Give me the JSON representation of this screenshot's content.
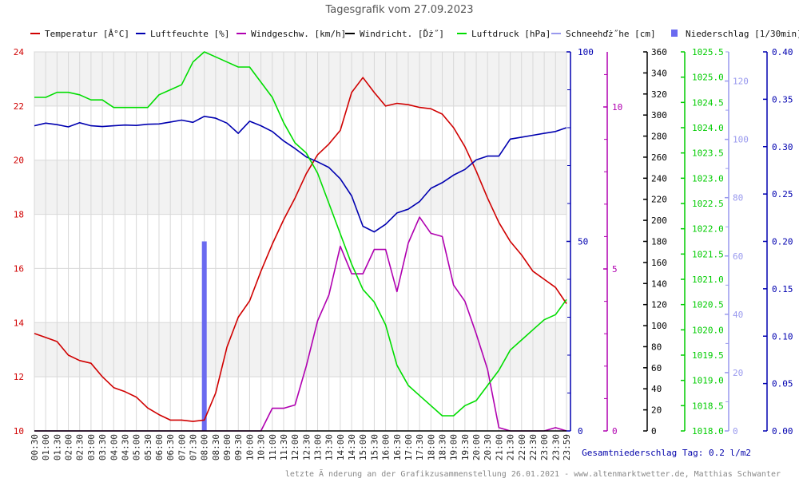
{
  "chart_data": {
    "type": "line",
    "title": "Tagesgrafik vom 27.09.2023",
    "footer_total": "Gesamtniederschlag Tag: 0.2 l/m2",
    "footer_credit": "letzte Ã nderung an der Grafikzusammenstellung 26.01.2021 - www.altenmarktwetter.de, Matthias Schwanter",
    "grid": true,
    "legend_position": "top",
    "x_labels": [
      "00:30",
      "01:00",
      "01:30",
      "02:00",
      "02:30",
      "03:00",
      "03:30",
      "04:00",
      "04:30",
      "05:00",
      "05:30",
      "06:00",
      "06:30",
      "07:00",
      "07:30",
      "08:00",
      "08:30",
      "09:00",
      "09:30",
      "10:00",
      "10:30",
      "11:00",
      "11:30",
      "12:00",
      "12:30",
      "13:00",
      "13:30",
      "14:00",
      "14:30",
      "15:00",
      "15:30",
      "16:00",
      "16:30",
      "17:00",
      "17:30",
      "18:00",
      "18:30",
      "19:00",
      "19:30",
      "20:00",
      "20:30",
      "21:00",
      "21:30",
      "22:00",
      "22:30",
      "23:00",
      "23:30",
      "23:59"
    ],
    "x_hours": [
      0.5,
      1,
      1.5,
      2,
      2.5,
      3,
      3.5,
      4,
      4.5,
      5,
      5.5,
      6,
      6.5,
      7,
      7.5,
      8,
      8.5,
      9,
      9.5,
      10,
      10.5,
      11,
      11.5,
      12,
      12.5,
      13,
      13.5,
      14,
      14.5,
      15,
      15.5,
      16,
      16.5,
      17,
      17.5,
      18,
      18.5,
      19,
      19.5,
      20,
      20.5,
      21,
      21.5,
      22,
      22.5,
      23,
      23.5,
      23.983
    ],
    "axes": [
      {
        "id": "temp",
        "ticks": [
          "10",
          "12",
          "14",
          "16",
          "18",
          "20",
          "22",
          "24"
        ],
        "range": [
          10,
          24
        ],
        "color": "#d00000"
      },
      {
        "id": "hum",
        "ticks": [
          "0",
          "50",
          "100"
        ],
        "range": [
          0,
          100
        ],
        "color": "#0000b0"
      },
      {
        "id": "wind",
        "ticks": [
          "0",
          "5",
          "10"
        ],
        "range": [
          0,
          11.7
        ],
        "color": "#b000b0"
      },
      {
        "id": "dir",
        "ticks": [
          "0",
          "20",
          "40",
          "60",
          "80",
          "100",
          "120",
          "140",
          "160",
          "180",
          "200",
          "220",
          "240",
          "260",
          "280",
          "300",
          "320",
          "340",
          "360"
        ],
        "range": [
          0,
          360
        ],
        "color": "#000000"
      },
      {
        "id": "press",
        "ticks": [
          "1018.0",
          "1018.5",
          "1019.0",
          "1019.5",
          "1020.0",
          "1020.5",
          "1021.0",
          "1021.5",
          "1022.0",
          "1022.5",
          "1023.0",
          "1023.5",
          "1024.0",
          "1024.5",
          "1025.0",
          "1025.5"
        ],
        "range": [
          1018.0,
          1025.5
        ],
        "color": "#00cc00"
      },
      {
        "id": "snow",
        "ticks": [
          "0",
          "20",
          "40",
          "60",
          "80",
          "100",
          "120"
        ],
        "range": [
          0,
          130
        ],
        "color": "#9999ee"
      },
      {
        "id": "rain",
        "ticks": [
          "0.00",
          "0.05",
          "0.10",
          "0.15",
          "0.20",
          "0.25",
          "0.30",
          "0.35",
          "0.40"
        ],
        "range": [
          0,
          0.4
        ],
        "color": "#0000b0"
      }
    ],
    "series": [
      {
        "name": "Temperatur [Â°C]",
        "axis": "temp",
        "color": "#d00000",
        "x": [
          0.5,
          1,
          1.5,
          2,
          2.5,
          3,
          3.5,
          4,
          4.5,
          5,
          5.5,
          6,
          6.5,
          7,
          7.5,
          8,
          8.5,
          9,
          9.5,
          10,
          10.5,
          11,
          11.5,
          12,
          12.5,
          13,
          13.5,
          14,
          14.5,
          15,
          15.5,
          16,
          16.5,
          17,
          17.5,
          18,
          18.5,
          19,
          19.5,
          20,
          20.5,
          21,
          21.5,
          22,
          22.5,
          23,
          23.5,
          23.983
        ],
        "values": [
          13.6,
          13.45,
          13.3,
          12.8,
          12.6,
          12.5,
          12.0,
          11.6,
          11.45,
          11.25,
          10.85,
          10.6,
          10.4,
          10.4,
          10.35,
          10.4,
          11.4,
          13.1,
          14.2,
          14.8,
          15.9,
          16.9,
          17.8,
          18.6,
          19.5,
          20.2,
          20.6,
          21.1,
          22.5,
          23.05,
          22.5,
          22.0,
          22.1,
          22.05,
          21.95,
          21.9,
          21.7,
          21.2,
          20.5,
          19.6,
          18.6,
          17.7,
          17.0,
          16.5,
          15.9,
          15.6,
          15.3,
          14.7
        ]
      },
      {
        "name": "Luftfeuchte [%]",
        "axis": "hum",
        "color": "#0000b0",
        "x": [
          0.5,
          1,
          1.5,
          2,
          2.5,
          3,
          3.5,
          4,
          4.5,
          5,
          5.5,
          6,
          6.5,
          7,
          7.5,
          8,
          8.5,
          9,
          9.5,
          10,
          10.5,
          11,
          11.5,
          12,
          12.5,
          13,
          13.5,
          14,
          14.5,
          15,
          15.5,
          16,
          16.5,
          17,
          17.5,
          18,
          18.5,
          19,
          19.5,
          20,
          20.5,
          21,
          21.5,
          22,
          22.5,
          23,
          23.5,
          23.983
        ],
        "values": [
          80.5,
          81.2,
          80.8,
          80.2,
          81.3,
          80.5,
          80.3,
          80.5,
          80.7,
          80.6,
          80.9,
          81.0,
          81.5,
          82.0,
          81.4,
          83.0,
          82.5,
          81.2,
          78.5,
          81.7,
          80.5,
          79.0,
          76.5,
          74.5,
          72.3,
          71.0,
          69.5,
          66.5,
          62.0,
          54.0,
          52.5,
          54.5,
          57.5,
          58.5,
          60.5,
          64.0,
          65.5,
          67.5,
          69.0,
          71.5,
          72.5,
          72.5,
          77.0,
          77.5,
          78.0,
          78.5,
          79.0,
          80.0
        ]
      },
      {
        "name": "Windgeschw. [km/h]",
        "axis": "wind",
        "color": "#b000b0",
        "x": [
          0.5,
          1,
          1.5,
          2,
          2.5,
          3,
          3.5,
          4,
          4.5,
          5,
          5.5,
          6,
          6.5,
          7,
          7.5,
          8,
          8.5,
          9,
          9.5,
          10,
          10.5,
          11,
          11.5,
          12,
          12.5,
          13,
          13.5,
          14,
          14.5,
          15,
          15.5,
          16,
          16.5,
          17,
          17.5,
          18,
          18.5,
          19,
          19.5,
          20,
          20.5,
          21,
          21.5,
          22,
          22.5,
          23,
          23.5,
          23.983
        ],
        "values": [
          0,
          0,
          0,
          0,
          0,
          0,
          0,
          0,
          0,
          0,
          0,
          0,
          0,
          0,
          0,
          0,
          0,
          0,
          0,
          0,
          0,
          0.7,
          0.7,
          0.8,
          2.0,
          3.4,
          4.2,
          5.7,
          4.85,
          4.85,
          5.6,
          5.6,
          4.3,
          5.8,
          6.6,
          6.1,
          6.0,
          4.5,
          4.0,
          3.0,
          1.9,
          0.1,
          0,
          0,
          0,
          0,
          0.1,
          0
        ]
      },
      {
        "name": "Windricht. [Ďż˝]",
        "axis": "dir",
        "color": "#000000",
        "x": [
          0.5,
          23.983
        ],
        "values": [
          0,
          0
        ]
      },
      {
        "name": "Luftdruck [hPa]",
        "axis": "press",
        "color": "#00dd00",
        "x": [
          0.5,
          1,
          1.5,
          2,
          2.5,
          3,
          3.5,
          4,
          4.5,
          5,
          5.5,
          6,
          6.5,
          7,
          7.5,
          8,
          8.5,
          9,
          9.5,
          10,
          10.5,
          11,
          11.5,
          12,
          12.5,
          13,
          13.5,
          14,
          14.5,
          15,
          15.5,
          16,
          16.5,
          17,
          17.5,
          18,
          18.5,
          19,
          19.5,
          20,
          20.5,
          21,
          21.5,
          22,
          22.5,
          23,
          23.5,
          23.983
        ],
        "values": [
          1024.6,
          1024.6,
          1024.7,
          1024.7,
          1024.65,
          1024.55,
          1024.55,
          1024.4,
          1024.4,
          1024.4,
          1024.4,
          1024.65,
          1024.75,
          1024.85,
          1025.3,
          1025.5,
          1025.4,
          1025.3,
          1025.2,
          1025.2,
          1024.9,
          1024.6,
          1024.1,
          1023.7,
          1023.5,
          1023.1,
          1022.5,
          1021.9,
          1021.3,
          1020.8,
          1020.55,
          1020.1,
          1019.3,
          1018.9,
          1018.7,
          1018.5,
          1018.3,
          1018.3,
          1018.5,
          1018.6,
          1018.9,
          1019.2,
          1019.6,
          1019.8,
          1020.0,
          1020.2,
          1020.3,
          1020.6
        ]
      },
      {
        "name": "Schneehďż˝he [cm]",
        "axis": "snow",
        "color": "#9999ee",
        "x": [],
        "values": []
      },
      {
        "name": "Niederschlag [1/30min]",
        "axis": "rain",
        "color": "#6a6af0",
        "bars": true,
        "x": [
          8.0
        ],
        "values": [
          0.2
        ]
      }
    ]
  }
}
